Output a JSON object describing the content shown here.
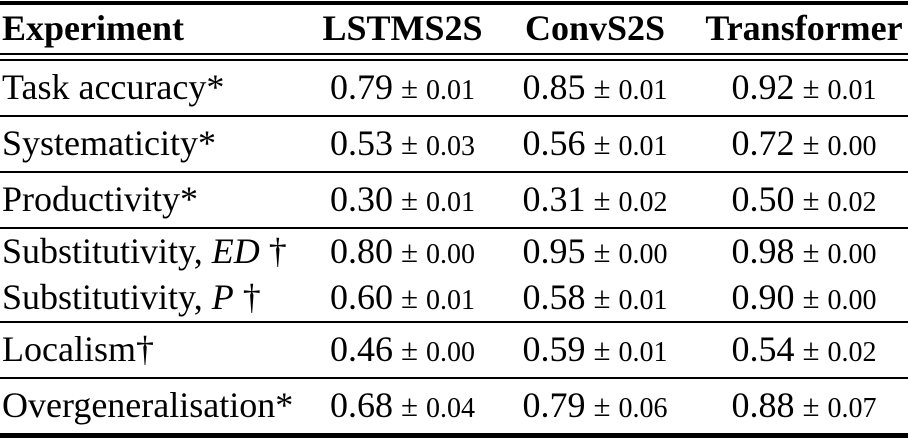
{
  "table": {
    "pm": "±",
    "columns": [
      "Experiment",
      "LSTMS2S",
      "ConvS2S",
      "Transformer"
    ],
    "rows": [
      {
        "label": "Task accuracy",
        "label_italic": "",
        "label_suffix": "*",
        "values": [
          {
            "v": "0.79",
            "e": "0.01"
          },
          {
            "v": "0.85",
            "e": "0.01"
          },
          {
            "v": "0.92",
            "e": "0.01"
          }
        ]
      },
      {
        "label": "Systematicity",
        "label_italic": "",
        "label_suffix": "*",
        "values": [
          {
            "v": "0.53",
            "e": "0.03"
          },
          {
            "v": "0.56",
            "e": "0.01"
          },
          {
            "v": "0.72",
            "e": "0.00"
          }
        ]
      },
      {
        "label": "Productivity",
        "label_italic": "",
        "label_suffix": "*",
        "values": [
          {
            "v": "0.30",
            "e": "0.01"
          },
          {
            "v": "0.31",
            "e": "0.02"
          },
          {
            "v": "0.50",
            "e": "0.02"
          }
        ]
      },
      {
        "label": "Substitutivity, ",
        "label_italic": "ED",
        "label_suffix": " †",
        "values": [
          {
            "v": "0.80",
            "e": "0.00"
          },
          {
            "v": "0.95",
            "e": "0.00"
          },
          {
            "v": "0.98",
            "e": "0.00"
          }
        ]
      },
      {
        "label": "Substitutivity, ",
        "label_italic": "P",
        "label_suffix": " †",
        "values": [
          {
            "v": "0.60",
            "e": "0.01"
          },
          {
            "v": "0.58",
            "e": "0.01"
          },
          {
            "v": "0.90",
            "e": "0.00"
          }
        ]
      },
      {
        "label": "Localism",
        "label_italic": "",
        "label_suffix": "†",
        "values": [
          {
            "v": "0.46",
            "e": "0.00"
          },
          {
            "v": "0.59",
            "e": "0.01"
          },
          {
            "v": "0.54",
            "e": "0.02"
          }
        ]
      },
      {
        "label": "Overgeneralisation",
        "label_italic": "",
        "label_suffix": "*",
        "values": [
          {
            "v": "0.68",
            "e": "0.04"
          },
          {
            "v": "0.79",
            "e": "0.06"
          },
          {
            "v": "0.88",
            "e": "0.07"
          }
        ]
      }
    ]
  }
}
